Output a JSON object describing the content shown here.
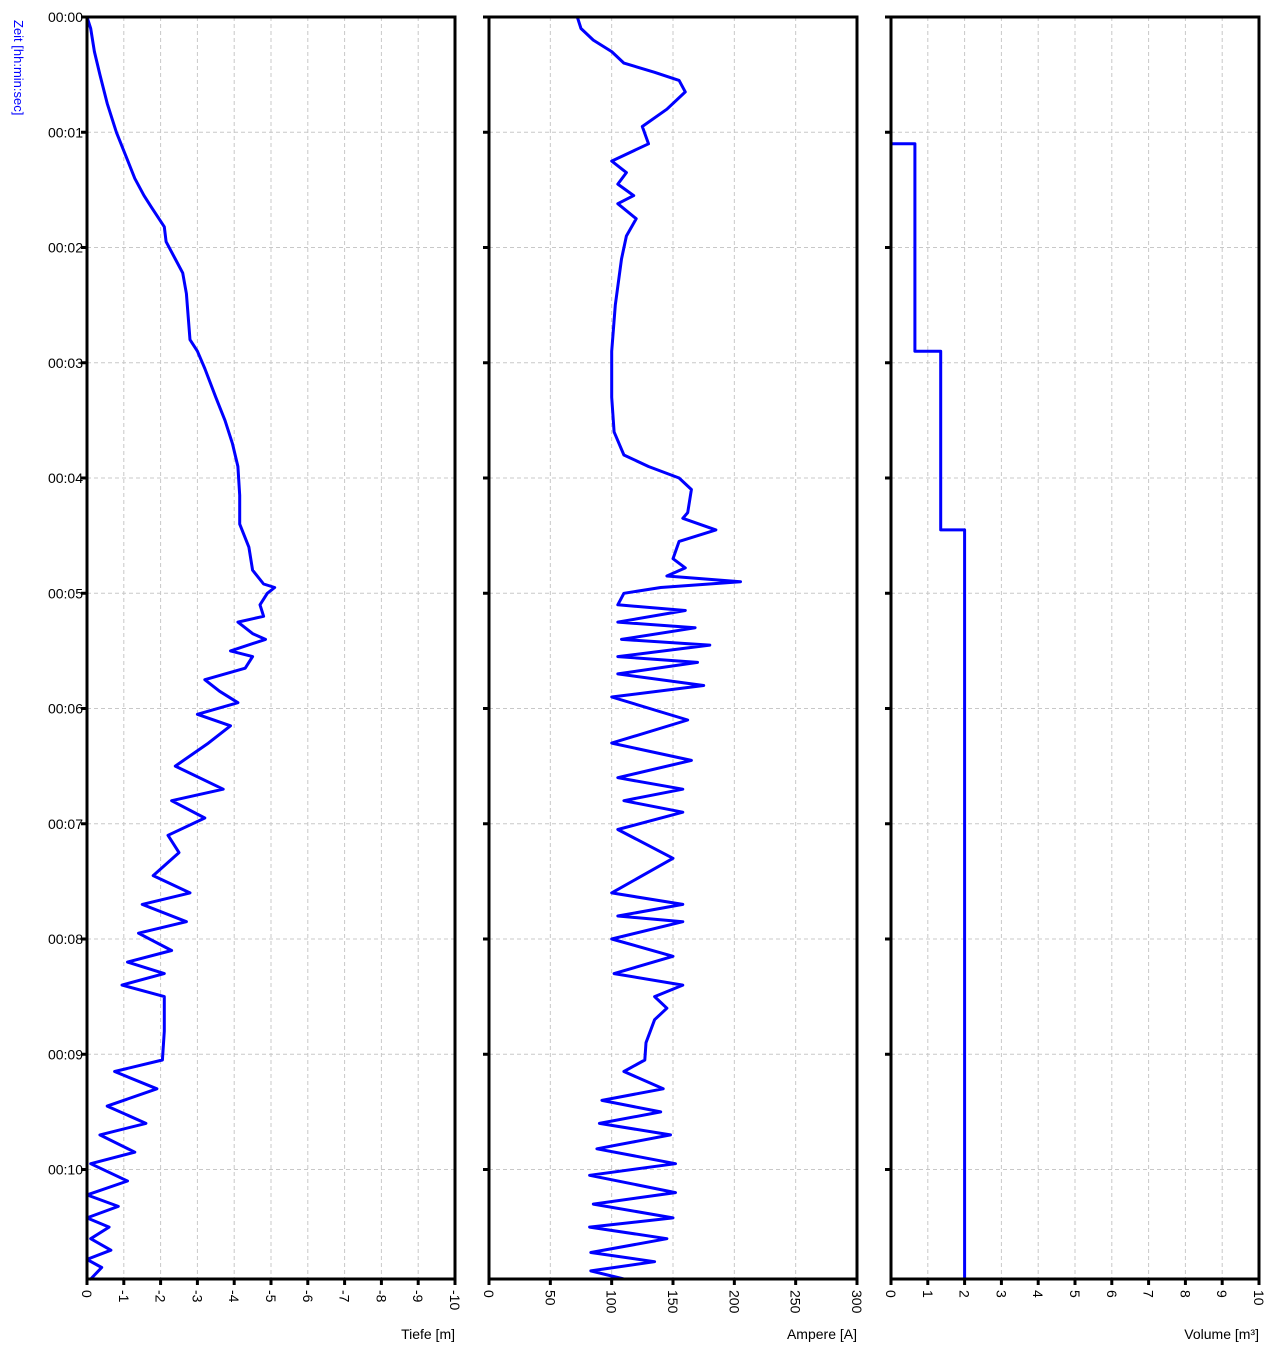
{
  "chart_data": [
    {
      "type": "line",
      "title": "",
      "xlabel": "Tiefe [m]",
      "ylabel": "Zeit [hh:min:sec]",
      "xlim": [
        0,
        -10
      ],
      "x_ticks": [
        0,
        -1,
        -2,
        -3,
        -4,
        -5,
        -6,
        -7,
        -8,
        -9,
        -10
      ],
      "x_tick_labels": [
        "0",
        "-1",
        "-2",
        "-3",
        "-4",
        "-5",
        "-6",
        "-7",
        "-8",
        "-9",
        "-10"
      ],
      "y_tick_labels": [
        "00:00",
        "00:01",
        "00:02",
        "00:03",
        "00:04",
        "00:05",
        "00:06",
        "00:07",
        "00:08",
        "00:09",
        "00:10"
      ],
      "y_unit": "minutes",
      "ylim": [
        0,
        10.95
      ],
      "grid": true,
      "color": "#0000ff",
      "series": [
        {
          "points": [
            [
              0.0,
              0.0
            ],
            [
              -0.1,
              0.1
            ],
            [
              -0.2,
              0.3
            ],
            [
              -0.35,
              0.5
            ],
            [
              -0.55,
              0.75
            ],
            [
              -0.8,
              1.0
            ],
            [
              -1.05,
              1.2
            ],
            [
              -1.3,
              1.4
            ],
            [
              -1.55,
              1.55
            ],
            [
              -1.75,
              1.65
            ],
            [
              -2.1,
              1.82
            ],
            [
              -2.15,
              1.95
            ],
            [
              -2.4,
              2.1
            ],
            [
              -2.6,
              2.22
            ],
            [
              -2.7,
              2.4
            ],
            [
              -2.75,
              2.6
            ],
            [
              -2.8,
              2.8
            ],
            [
              -3.0,
              2.9
            ],
            [
              -3.2,
              3.05
            ],
            [
              -3.5,
              3.3
            ],
            [
              -3.75,
              3.5
            ],
            [
              -3.95,
              3.7
            ],
            [
              -4.1,
              3.9
            ],
            [
              -4.15,
              4.15
            ],
            [
              -4.15,
              4.4
            ],
            [
              -4.4,
              4.6
            ],
            [
              -4.5,
              4.8
            ],
            [
              -4.8,
              4.92
            ],
            [
              -5.1,
              4.95
            ],
            [
              -4.9,
              5.0
            ],
            [
              -4.7,
              5.1
            ],
            [
              -4.8,
              5.2
            ],
            [
              -4.1,
              5.25
            ],
            [
              -4.5,
              5.35
            ],
            [
              -4.85,
              5.4
            ],
            [
              -3.9,
              5.5
            ],
            [
              -4.5,
              5.55
            ],
            [
              -4.3,
              5.65
            ],
            [
              -3.2,
              5.75
            ],
            [
              -3.6,
              5.85
            ],
            [
              -4.1,
              5.95
            ],
            [
              -3.0,
              6.05
            ],
            [
              -3.9,
              6.15
            ],
            [
              -3.3,
              6.3
            ],
            [
              -2.4,
              6.5
            ],
            [
              -3.7,
              6.7
            ],
            [
              -2.3,
              6.8
            ],
            [
              -3.2,
              6.95
            ],
            [
              -2.2,
              7.1
            ],
            [
              -2.5,
              7.25
            ],
            [
              -1.8,
              7.45
            ],
            [
              -2.8,
              7.6
            ],
            [
              -1.5,
              7.7
            ],
            [
              -2.7,
              7.85
            ],
            [
              -1.4,
              7.95
            ],
            [
              -2.3,
              8.1
            ],
            [
              -1.1,
              8.2
            ],
            [
              -2.1,
              8.3
            ],
            [
              -0.95,
              8.4
            ],
            [
              -2.1,
              8.5
            ],
            [
              -2.1,
              8.8
            ],
            [
              -2.05,
              9.05
            ],
            [
              -0.75,
              9.15
            ],
            [
              -1.9,
              9.3
            ],
            [
              -0.55,
              9.45
            ],
            [
              -1.6,
              9.6
            ],
            [
              -0.35,
              9.7
            ],
            [
              -1.3,
              9.85
            ],
            [
              -0.1,
              9.95
            ],
            [
              -1.1,
              10.1
            ],
            [
              0.0,
              10.22
            ],
            [
              -0.85,
              10.32
            ],
            [
              0.0,
              10.42
            ],
            [
              -0.6,
              10.5
            ],
            [
              -0.1,
              10.6
            ],
            [
              -0.65,
              10.7
            ],
            [
              0.0,
              10.78
            ],
            [
              -0.4,
              10.85
            ],
            [
              -0.1,
              10.95
            ]
          ]
        }
      ]
    },
    {
      "type": "line",
      "title": "",
      "xlabel": "Ampere [A]",
      "ylabel": "",
      "xlim": [
        0,
        300
      ],
      "x_ticks": [
        0,
        50,
        100,
        150,
        200,
        250,
        300
      ],
      "x_tick_labels": [
        "0",
        "50",
        "100",
        "150",
        "200",
        "250",
        "300"
      ],
      "y_unit": "minutes",
      "ylim": [
        0,
        10.95
      ],
      "grid": true,
      "color": "#0000ff",
      "series": [
        {
          "points": [
            [
              72,
              0.0
            ],
            [
              75,
              0.1
            ],
            [
              85,
              0.2
            ],
            [
              100,
              0.3
            ],
            [
              110,
              0.4
            ],
            [
              135,
              0.48
            ],
            [
              155,
              0.55
            ],
            [
              160,
              0.65
            ],
            [
              145,
              0.8
            ],
            [
              125,
              0.95
            ],
            [
              130,
              1.1
            ],
            [
              100,
              1.25
            ],
            [
              112,
              1.35
            ],
            [
              105,
              1.45
            ],
            [
              118,
              1.55
            ],
            [
              105,
              1.62
            ],
            [
              120,
              1.75
            ],
            [
              112,
              1.9
            ],
            [
              108,
              2.1
            ],
            [
              103,
              2.5
            ],
            [
              100,
              2.9
            ],
            [
              100,
              3.3
            ],
            [
              102,
              3.6
            ],
            [
              110,
              3.8
            ],
            [
              130,
              3.9
            ],
            [
              155,
              4.0
            ],
            [
              165,
              4.1
            ],
            [
              162,
              4.3
            ],
            [
              158,
              4.35
            ],
            [
              185,
              4.45
            ],
            [
              155,
              4.55
            ],
            [
              150,
              4.7
            ],
            [
              160,
              4.78
            ],
            [
              145,
              4.85
            ],
            [
              205,
              4.9
            ],
            [
              140,
              4.95
            ],
            [
              110,
              5.0
            ],
            [
              105,
              5.1
            ],
            [
              160,
              5.15
            ],
            [
              105,
              5.25
            ],
            [
              168,
              5.3
            ],
            [
              108,
              5.4
            ],
            [
              180,
              5.45
            ],
            [
              105,
              5.55
            ],
            [
              170,
              5.6
            ],
            [
              105,
              5.7
            ],
            [
              175,
              5.8
            ],
            [
              100,
              5.9
            ],
            [
              162,
              6.1
            ],
            [
              100,
              6.3
            ],
            [
              165,
              6.45
            ],
            [
              105,
              6.6
            ],
            [
              158,
              6.7
            ],
            [
              110,
              6.8
            ],
            [
              158,
              6.9
            ],
            [
              105,
              7.05
            ],
            [
              150,
              7.3
            ],
            [
              100,
              7.6
            ],
            [
              158,
              7.7
            ],
            [
              105,
              7.8
            ],
            [
              158,
              7.85
            ],
            [
              100,
              8.0
            ],
            [
              150,
              8.15
            ],
            [
              102,
              8.3
            ],
            [
              158,
              8.4
            ],
            [
              135,
              8.5
            ],
            [
              145,
              8.6
            ],
            [
              135,
              8.7
            ],
            [
              128,
              8.9
            ],
            [
              127,
              9.05
            ],
            [
              110,
              9.15
            ],
            [
              142,
              9.3
            ],
            [
              92,
              9.4
            ],
            [
              140,
              9.5
            ],
            [
              90,
              9.6
            ],
            [
              148,
              9.7
            ],
            [
              88,
              9.82
            ],
            [
              152,
              9.95
            ],
            [
              82,
              10.05
            ],
            [
              152,
              10.2
            ],
            [
              85,
              10.3
            ],
            [
              150,
              10.42
            ],
            [
              82,
              10.5
            ],
            [
              145,
              10.6
            ],
            [
              83,
              10.72
            ],
            [
              135,
              10.8
            ],
            [
              83,
              10.88
            ],
            [
              110,
              10.95
            ]
          ]
        }
      ]
    },
    {
      "type": "line",
      "title": "",
      "xlabel": "Volume [m³]",
      "ylabel": "",
      "xlim": [
        0,
        10
      ],
      "x_ticks": [
        0,
        1,
        2,
        3,
        4,
        5,
        6,
        7,
        8,
        9,
        10
      ],
      "x_tick_labels": [
        "0",
        "1",
        "2",
        "3",
        "4",
        "5",
        "6",
        "7",
        "8",
        "9",
        "10"
      ],
      "y_unit": "minutes",
      "ylim": [
        0,
        10.95
      ],
      "grid": true,
      "color": "#0000ff",
      "series": [
        {
          "points": [
            [
              0,
              0.0
            ],
            [
              0,
              1.1
            ],
            [
              0.65,
              1.1
            ],
            [
              0.65,
              2.9
            ],
            [
              1.35,
              2.9
            ],
            [
              1.35,
              4.45
            ],
            [
              2.0,
              4.45
            ],
            [
              2.0,
              10.95
            ]
          ]
        }
      ]
    }
  ]
}
